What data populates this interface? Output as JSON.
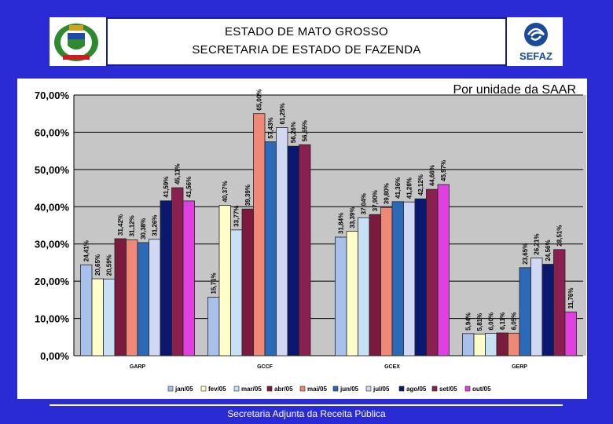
{
  "header": {
    "line1": "ESTADO DE MATO GROSSO",
    "line2": "SECRETARIA DE ESTADO DE FAZENDA",
    "logo_text": "SEFAZ"
  },
  "footer": {
    "text": "Secretaria Adjunta da Receita Pública"
  },
  "chart_data": {
    "type": "bar",
    "title": "Por unidade da SAAR",
    "categories": [
      "GARP",
      "GCCF",
      "GCEX",
      "GERP"
    ],
    "ylim": [
      0,
      70
    ],
    "yticks": [
      "0,00%",
      "10,00%",
      "20,00%",
      "30,00%",
      "40,00%",
      "50,00%",
      "60,00%",
      "70,00%"
    ],
    "grid": true,
    "legend_position": "bottom",
    "series": [
      {
        "name": "jan/05",
        "color": "#a8c0ec",
        "values": [
          24.41,
          15.71,
          31.84,
          5.94
        ],
        "labels": [
          "24,41%",
          "15,71%",
          "31,84%",
          "5,94%"
        ]
      },
      {
        "name": "fev/05",
        "color": "#fffdc8",
        "values": [
          20.65,
          40.37,
          33.39,
          5.81
        ],
        "labels": [
          "20,65%",
          "40,37%",
          "33,39%",
          "5,81%"
        ]
      },
      {
        "name": "mar/05",
        "color": "#c8e0f4",
        "values": [
          20.59,
          33.77,
          37.04,
          6.0
        ],
        "labels": [
          "20,59%",
          "33,77%",
          "37,04%",
          "6,00%"
        ]
      },
      {
        "name": "abr/05",
        "color": "#7a1a3c",
        "values": [
          31.42,
          39.39,
          37.9,
          6.11
        ],
        "labels": [
          "31,42%",
          "39,39%",
          "37,90%",
          "6,11%"
        ]
      },
      {
        "name": "mai/05",
        "color": "#f08878",
        "values": [
          31.12,
          65.0,
          39.8,
          6.05
        ],
        "labels": [
          "31,12%",
          "65,00%",
          "39,80%",
          "6,05%"
        ]
      },
      {
        "name": "jun/05",
        "color": "#2a6ab8",
        "values": [
          30.38,
          57.43,
          41.36,
          23.65
        ],
        "labels": [
          "30,38%",
          "57,43%",
          "41,36%",
          "23,65%"
        ]
      },
      {
        "name": "jul/05",
        "color": "#d0d8f4",
        "values": [
          31.26,
          61.25,
          41.28,
          26.21
        ],
        "labels": [
          "31,26%",
          "61,25%",
          "41,28%",
          "26,21%"
        ]
      },
      {
        "name": "ago/05",
        "color": "#0a1870",
        "values": [
          41.59,
          56.26,
          42.12,
          24.56
        ],
        "labels": [
          "41,59%",
          "56,26%",
          "42,12%",
          "24,56%"
        ]
      },
      {
        "name": "set/05",
        "color": "#8a2050",
        "values": [
          45.11,
          56.65,
          44.66,
          28.51
        ],
        "labels": [
          "45,11%",
          "56,65%",
          "44,66%",
          "28,51%"
        ]
      },
      {
        "name": "out/05",
        "color": "#e040e0",
        "values": [
          41.56,
          null,
          45.97,
          11.76
        ],
        "labels": [
          "41,56%",
          "",
          "45,97%",
          "11,76%"
        ]
      }
    ]
  }
}
